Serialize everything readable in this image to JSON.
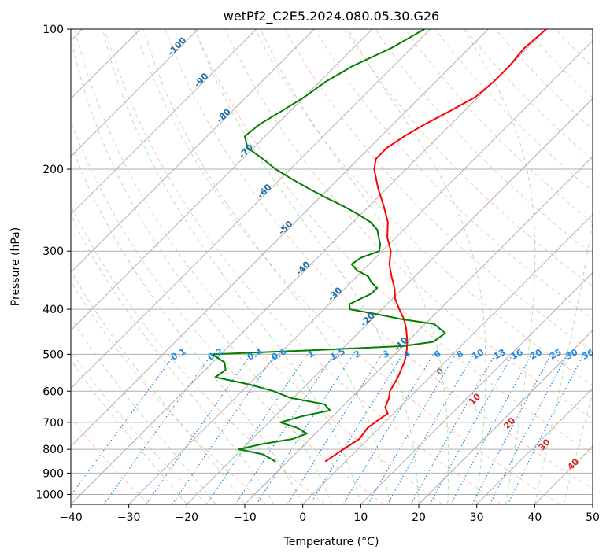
{
  "chart_data": {
    "type": "line",
    "subtype": "skew-t log-p diagram",
    "title": "wetPf2_C2E5.2024.080.05.30.G26",
    "xlabel": "Temperature (°C)",
    "ylabel": "Pressure (hPa)",
    "xlim": [
      -40,
      50
    ],
    "ylim": [
      1050,
      100
    ],
    "y_scale": "log",
    "grid": true,
    "x_ticks": [
      -40,
      -30,
      -20,
      -10,
      0,
      10,
      20,
      30,
      40,
      50
    ],
    "y_ticks": [
      100,
      200,
      300,
      400,
      500,
      600,
      700,
      800,
      900,
      1000
    ],
    "colors": {
      "temperature": "#ff0000",
      "dewpoint": "#008000",
      "isotherm_labels": "#1f6fa8",
      "mixing_ratio": "#1e88e5",
      "dry_adiabat": "#ff7f50",
      "moist_adiabat": "#2ca02c",
      "grid": "#b0b0b0",
      "fixed_label_red": "#d62728",
      "fixed_label_gray": "#808080"
    },
    "series": [
      {
        "role": "temperature",
        "pressure": [
          850,
          800,
          760,
          720,
          690,
          670,
          650,
          620,
          600,
          560,
          520,
          500,
          470,
          440,
          420,
          400,
          380,
          360,
          340,
          320,
          300,
          280,
          260,
          240,
          220,
          200,
          190,
          180,
          170,
          160,
          150,
          140,
          130,
          120,
          110,
          100
        ],
        "values": [
          -3.5,
          -2.5,
          -1.5,
          -2.0,
          -1.5,
          -1.0,
          -2.5,
          -3.5,
          -4.5,
          -5.5,
          -7.0,
          -8.0,
          -10.0,
          -12.5,
          -14.5,
          -17.0,
          -19.5,
          -21.5,
          -24.0,
          -26.5,
          -28.5,
          -31.5,
          -34.0,
          -37.5,
          -41.5,
          -45.5,
          -47.0,
          -47.0,
          -46.0,
          -44.5,
          -42.5,
          -40.5,
          -40.0,
          -40.0,
          -40.5,
          -40.0
        ]
      },
      {
        "role": "dewpoint",
        "pressure": [
          850,
          820,
          800,
          780,
          760,
          740,
          720,
          700,
          680,
          660,
          640,
          620,
          600,
          580,
          560,
          540,
          520,
          500,
          490,
          480,
          470,
          450,
          430,
          420,
          410,
          400,
          390,
          380,
          370,
          360,
          350,
          340,
          330,
          320,
          310,
          300,
          290,
          280,
          270,
          260,
          250,
          240,
          230,
          220,
          210,
          200,
          190,
          180,
          170,
          160,
          150,
          140,
          130,
          120,
          110,
          100
        ],
        "values": [
          -12.0,
          -15.5,
          -20.5,
          -17.5,
          -13.0,
          -11.5,
          -14.0,
          -18.0,
          -15.5,
          -11.5,
          -13.5,
          -20.5,
          -24.5,
          -30.0,
          -37.0,
          -36.5,
          -38.0,
          -41.5,
          -25.0,
          -10.0,
          -5.5,
          -5.0,
          -8.5,
          -15.0,
          -20.0,
          -25.5,
          -26.5,
          -25.5,
          -24.5,
          -24.5,
          -26.5,
          -28.0,
          -31.0,
          -33.0,
          -32.5,
          -30.5,
          -31.5,
          -33.0,
          -34.5,
          -37.0,
          -40.5,
          -44.5,
          -49.0,
          -53.5,
          -58.0,
          -62.5,
          -66.5,
          -71.0,
          -73.5,
          -73.0,
          -71.5,
          -70.0,
          -69.0,
          -67.0,
          -63.5,
          -61.0
        ]
      }
    ],
    "isotherm_labels": [
      "-100",
      "-90",
      "-80",
      "-70",
      "-60",
      "-50",
      "-40",
      "-30",
      "-20",
      "-10"
    ],
    "mixing_ratio_labels": [
      "0.1",
      "0.2",
      "0.4",
      "0.6",
      "1",
      "1.5",
      "2",
      "3",
      "4",
      "6",
      "8",
      "10",
      "13",
      "16",
      "20",
      "25",
      "30",
      "36"
    ],
    "moist_adiabat_labels": [
      "0",
      "10",
      "20",
      "30",
      "40"
    ]
  }
}
